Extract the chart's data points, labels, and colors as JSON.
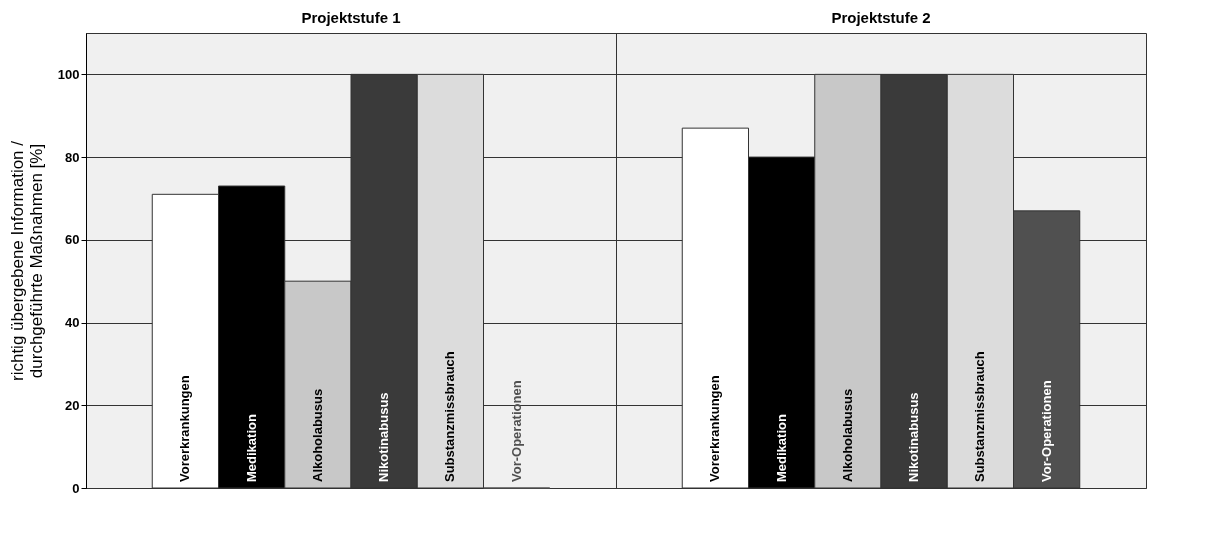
{
  "chart_data": {
    "type": "bar",
    "ylabel": "richtig übergebene Information /\ndurchgeführte Maßnahmen [%]",
    "categories": [
      "Projektstufe 1",
      "Projektstufe 2"
    ],
    "series": [
      {
        "name": "Vorerkrankungen",
        "color": "#ffffff",
        "values": [
          71,
          87
        ]
      },
      {
        "name": "Medikation",
        "color": "#000000",
        "values": [
          73,
          80
        ]
      },
      {
        "name": "Alkoholabusus",
        "color": "#c8c8c8",
        "values": [
          50,
          100
        ]
      },
      {
        "name": "Nikotinabusus",
        "color": "#3a3a3a",
        "values": [
          100,
          100
        ]
      },
      {
        "name": "Substanzmissbrauch",
        "color": "#dcdcdc",
        "values": [
          100,
          100
        ]
      },
      {
        "name": "Vor-Operationen",
        "color": "#505050",
        "values": [
          0,
          67
        ]
      }
    ],
    "ylim": [
      0,
      110
    ],
    "yticks": [
      0,
      20,
      40,
      60,
      80,
      100
    ],
    "grid": "y",
    "legend": false
  }
}
